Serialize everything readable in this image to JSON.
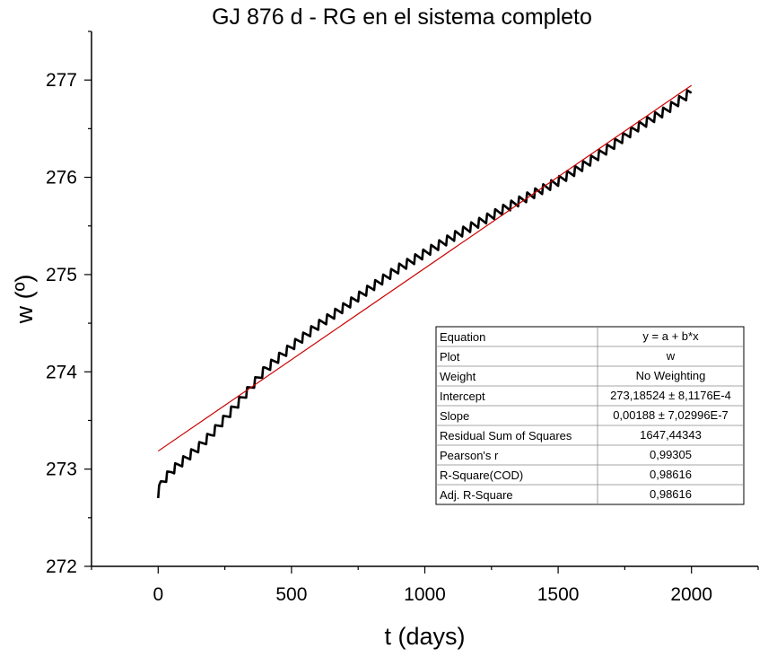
{
  "chart_data": {
    "type": "line",
    "title": "GJ 876 d - RG en el sistema completo",
    "xlabel": "t (days)",
    "ylabel": "w (º)",
    "xlim": [
      -250,
      2250
    ],
    "ylim": [
      272,
      277.5
    ],
    "x_ticks": [
      0,
      500,
      1000,
      1500,
      2000
    ],
    "x_tick_labels": [
      "0",
      "500",
      "1000",
      "1500",
      "2000"
    ],
    "y_ticks": [
      272,
      273,
      274,
      275,
      276,
      277
    ],
    "y_tick_labels": [
      "272",
      "273",
      "274",
      "275",
      "276",
      "277"
    ],
    "grid": false,
    "legend": "none",
    "series": [
      {
        "color": "#000000",
        "style": "oscillating-line",
        "oscillation_period_days": 30,
        "x": [
          0,
          10,
          25,
          50,
          100,
          150,
          200,
          250,
          300,
          350,
          400,
          500,
          600,
          700,
          800,
          900,
          1000,
          1100,
          1200,
          1300,
          1400,
          1500,
          1600,
          1700,
          1800,
          1900,
          2000
        ],
        "y": [
          272.75,
          272.85,
          272.9,
          272.98,
          273.1,
          273.22,
          273.36,
          273.52,
          273.68,
          273.85,
          274.02,
          274.26,
          274.48,
          274.67,
          274.87,
          275.06,
          275.22,
          275.38,
          275.53,
          275.68,
          275.82,
          275.96,
          276.13,
          276.32,
          276.52,
          276.68,
          276.88
        ]
      },
      {
        "color": "#cc0000",
        "style": "linear-fit",
        "intercept": 273.18524,
        "slope": 0.00188,
        "x": [
          0,
          2000
        ],
        "y": [
          273.18524,
          276.94524
        ]
      }
    ],
    "fit_table": [
      [
        "Equation",
        "y = a + b*x"
      ],
      [
        "Plot",
        "w"
      ],
      [
        "Weight",
        "No Weighting"
      ],
      [
        "Intercept",
        "273,18524 ± 8,1176E-4"
      ],
      [
        "Slope",
        "0,00188 ± 7,02996E-7"
      ],
      [
        "Residual Sum of Squares",
        "1647,44343"
      ],
      [
        "Pearson's r",
        "0,99305"
      ],
      [
        "R-Square(COD)",
        "0,98616"
      ],
      [
        "Adj. R-Square",
        "0,98616"
      ]
    ]
  }
}
